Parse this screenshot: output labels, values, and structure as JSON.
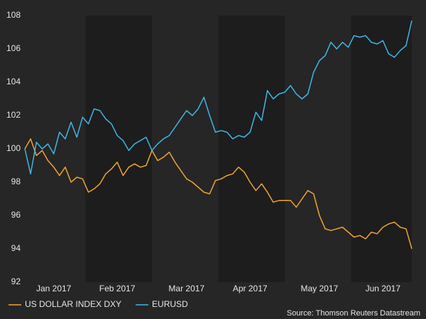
{
  "chart_data": {
    "type": "line",
    "source": "Source: Thomson Reuters Datastream",
    "categories": [
      null,
      null,
      null,
      null,
      null,
      "Jan 2017",
      null,
      null,
      null,
      null,
      null,
      null,
      null,
      null,
      null,
      null,
      "Feb 2017",
      null,
      null,
      null,
      null,
      null,
      null,
      null,
      null,
      null,
      null,
      null,
      "Mar 2017",
      null,
      null,
      null,
      null,
      null,
      null,
      null,
      null,
      null,
      null,
      "Apr 2017",
      null,
      null,
      null,
      null,
      null,
      null,
      null,
      null,
      null,
      null,
      null,
      "May 2017",
      null,
      null,
      null,
      null,
      null,
      null,
      null,
      null,
      null,
      null,
      "Jun 2017",
      null,
      null,
      null,
      null,
      null
    ],
    "series": [
      {
        "name": "US DOLLAR INDEX DXY",
        "color": "#f0a330",
        "values": [
          100.0,
          100.6,
          99.6,
          99.9,
          99.3,
          98.9,
          98.4,
          98.9,
          98.0,
          98.3,
          98.2,
          97.4,
          97.6,
          97.9,
          98.5,
          98.8,
          99.2,
          98.4,
          98.9,
          99.1,
          98.9,
          99.0,
          99.9,
          99.3,
          99.5,
          99.8,
          99.2,
          98.7,
          98.2,
          98.0,
          97.7,
          97.4,
          97.3,
          98.1,
          98.2,
          98.4,
          98.5,
          98.9,
          98.6,
          98.0,
          97.5,
          97.9,
          97.4,
          96.8,
          96.9,
          96.9,
          96.9,
          96.5,
          97.0,
          97.5,
          97.3,
          96.0,
          95.2,
          95.1,
          95.2,
          95.3,
          95.0,
          94.7,
          94.8,
          94.6,
          95.0,
          94.9,
          95.3,
          95.5,
          95.6,
          95.3,
          95.2,
          94.0
        ]
      },
      {
        "name": "EURUSD",
        "color": "#3cb7e6",
        "values": [
          100.0,
          98.5,
          100.4,
          100.0,
          100.3,
          99.7,
          101.0,
          100.6,
          101.6,
          100.7,
          101.9,
          101.5,
          102.4,
          102.3,
          101.8,
          101.5,
          100.8,
          100.5,
          99.9,
          100.3,
          100.5,
          100.7,
          99.9,
          100.3,
          100.6,
          100.8,
          101.3,
          101.8,
          102.3,
          102.0,
          102.4,
          103.1,
          102.0,
          101.0,
          101.1,
          101.0,
          100.6,
          100.8,
          100.7,
          101.0,
          102.2,
          101.7,
          103.5,
          103.0,
          103.3,
          103.4,
          103.8,
          103.3,
          103.0,
          103.3,
          104.6,
          105.3,
          105.6,
          106.4,
          106.0,
          106.4,
          106.1,
          106.8,
          106.7,
          106.8,
          106.4,
          106.3,
          106.5,
          105.7,
          105.5,
          105.9,
          106.2,
          107.7
        ]
      }
    ],
    "ylim": [
      92,
      108
    ],
    "yticks": [
      92,
      94,
      96,
      98,
      100,
      102,
      104,
      106,
      108
    ],
    "legend": "bottom",
    "grid": false
  }
}
